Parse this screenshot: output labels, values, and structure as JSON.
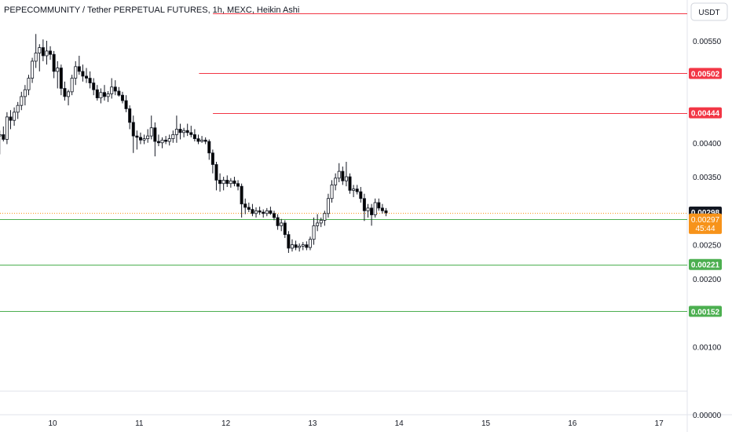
{
  "header": {
    "title": "PEPECOMMUNITY / Tether PERPETUAL FUTURES, 1h, MEXC, Heikin Ashi",
    "currency": "USDT"
  },
  "chart_data": {
    "type": "candlestick",
    "ylim": [
      0,
      0.0061
    ],
    "y_ticks": [
      "0.00550",
      "0.00400",
      "0.00350",
      "0.00250",
      "0.00200",
      "0.00100",
      "0.00000"
    ],
    "y_tick_values": [
      0.0055,
      0.004,
      0.0035,
      0.0025,
      0.002,
      0.001,
      0.0
    ],
    "x_ticks": [
      "10",
      "11",
      "12",
      "13",
      "14",
      "15",
      "16",
      "17"
    ],
    "x_tick_days": [
      10,
      11,
      12,
      13,
      14,
      15,
      16,
      17
    ],
    "x_start_day": 9.39,
    "hours_per_day": 24,
    "candles": [
      [
        0.0041,
        0.00418,
        0.00383,
        0.00412
      ],
      [
        0.00412,
        0.00424,
        0.00402,
        0.00405
      ],
      [
        0.00405,
        0.00445,
        0.00398,
        0.00438
      ],
      [
        0.00438,
        0.00448,
        0.0042,
        0.00433
      ],
      [
        0.00433,
        0.00452,
        0.00425,
        0.00445
      ],
      [
        0.00445,
        0.0046,
        0.00435,
        0.00455
      ],
      [
        0.00455,
        0.00475,
        0.00448,
        0.00468
      ],
      [
        0.00468,
        0.00485,
        0.00455,
        0.00478
      ],
      [
        0.00478,
        0.005,
        0.0047,
        0.00495
      ],
      [
        0.00495,
        0.00525,
        0.00488,
        0.0052
      ],
      [
        0.0052,
        0.0056,
        0.0051,
        0.00532
      ],
      [
        0.00532,
        0.00545,
        0.00505,
        0.0054
      ],
      [
        0.0054,
        0.00552,
        0.0052,
        0.00528
      ],
      [
        0.00528,
        0.0055,
        0.00515,
        0.00535
      ],
      [
        0.00535,
        0.00542,
        0.00522,
        0.0053
      ],
      [
        0.0053,
        0.00535,
        0.00495,
        0.00505
      ],
      [
        0.00505,
        0.0052,
        0.0048,
        0.0051
      ],
      [
        0.0051,
        0.00515,
        0.0047,
        0.0048
      ],
      [
        0.0048,
        0.0049,
        0.00462,
        0.00468
      ],
      [
        0.00468,
        0.00478,
        0.00455,
        0.00475
      ],
      [
        0.00475,
        0.005,
        0.0047,
        0.00495
      ],
      [
        0.00495,
        0.0052,
        0.00485,
        0.00512
      ],
      [
        0.00512,
        0.00528,
        0.005,
        0.00505
      ],
      [
        0.00505,
        0.00515,
        0.0049,
        0.00498
      ],
      [
        0.00498,
        0.0051,
        0.00488,
        0.00495
      ],
      [
        0.00495,
        0.00505,
        0.0048,
        0.00488
      ],
      [
        0.00488,
        0.00495,
        0.0047,
        0.00478
      ],
      [
        0.00478,
        0.00485,
        0.00462,
        0.00466
      ],
      [
        0.00466,
        0.0048,
        0.00458,
        0.00474
      ],
      [
        0.00474,
        0.00485,
        0.00462,
        0.00468
      ],
      [
        0.00468,
        0.00476,
        0.0046,
        0.00472
      ],
      [
        0.00472,
        0.00495,
        0.00465,
        0.00482
      ],
      [
        0.00482,
        0.00492,
        0.0047,
        0.00476
      ],
      [
        0.00476,
        0.00482,
        0.00468,
        0.0047
      ],
      [
        0.0047,
        0.00475,
        0.00458,
        0.00462
      ],
      [
        0.00462,
        0.0047,
        0.00445,
        0.0045
      ],
      [
        0.0045,
        0.00455,
        0.0042,
        0.0043
      ],
      [
        0.0043,
        0.0044,
        0.00385,
        0.0041
      ],
      [
        0.0041,
        0.00418,
        0.0039,
        0.00408
      ],
      [
        0.00408,
        0.00415,
        0.00398,
        0.00404
      ],
      [
        0.00404,
        0.00412,
        0.00398,
        0.00406
      ],
      [
        0.00406,
        0.0042,
        0.004,
        0.0041
      ],
      [
        0.0041,
        0.0044,
        0.00405,
        0.00422
      ],
      [
        0.00422,
        0.0043,
        0.0038,
        0.00402
      ],
      [
        0.00402,
        0.00412,
        0.00395,
        0.004
      ],
      [
        0.004,
        0.00408,
        0.00392,
        0.00404
      ],
      [
        0.00404,
        0.0041,
        0.00398,
        0.00402
      ],
      [
        0.00402,
        0.00412,
        0.00396,
        0.00406
      ],
      [
        0.00406,
        0.00418,
        0.004,
        0.00412
      ],
      [
        0.00412,
        0.0044,
        0.004,
        0.0042
      ],
      [
        0.0042,
        0.00428,
        0.00405,
        0.00415
      ],
      [
        0.00415,
        0.00422,
        0.00408,
        0.00418
      ],
      [
        0.00418,
        0.00428,
        0.0041,
        0.00415
      ],
      [
        0.00415,
        0.00425,
        0.00408,
        0.00412
      ],
      [
        0.00412,
        0.0042,
        0.00402,
        0.00406
      ],
      [
        0.00406,
        0.00412,
        0.00398,
        0.00402
      ],
      [
        0.00402,
        0.0041,
        0.004,
        0.00404
      ],
      [
        0.00404,
        0.00408,
        0.00398,
        0.00402
      ],
      [
        0.00402,
        0.00405,
        0.00375,
        0.00385
      ],
      [
        0.00385,
        0.0039,
        0.00355,
        0.00368
      ],
      [
        0.00368,
        0.00372,
        0.0033,
        0.00345
      ],
      [
        0.00345,
        0.00355,
        0.00328,
        0.0034
      ],
      [
        0.0034,
        0.0035,
        0.0033,
        0.00345
      ],
      [
        0.00345,
        0.00352,
        0.00335,
        0.0034
      ],
      [
        0.0034,
        0.00348,
        0.00334,
        0.00344
      ],
      [
        0.00344,
        0.0035,
        0.00336,
        0.0034
      ],
      [
        0.0034,
        0.00345,
        0.0033,
        0.00336
      ],
      [
        0.00336,
        0.0034,
        0.0029,
        0.0031
      ],
      [
        0.0031,
        0.00318,
        0.00295,
        0.00305
      ],
      [
        0.00305,
        0.00312,
        0.00298,
        0.00302
      ],
      [
        0.00302,
        0.0031,
        0.00292,
        0.00296
      ],
      [
        0.00296,
        0.00305,
        0.0029,
        0.003
      ],
      [
        0.003,
        0.00306,
        0.00294,
        0.00298
      ],
      [
        0.00298,
        0.00302,
        0.0029,
        0.00296
      ],
      [
        0.00296,
        0.00304,
        0.00292,
        0.003
      ],
      [
        0.003,
        0.00306,
        0.00294,
        0.00296
      ],
      [
        0.00296,
        0.003,
        0.00286,
        0.0029
      ],
      [
        0.0029,
        0.00295,
        0.00272,
        0.00278
      ],
      [
        0.00278,
        0.00288,
        0.0027,
        0.00282
      ],
      [
        0.00282,
        0.00286,
        0.0026,
        0.00265
      ],
      [
        0.00265,
        0.0027,
        0.00238,
        0.00245
      ],
      [
        0.00245,
        0.00258,
        0.0024,
        0.0025
      ],
      [
        0.0025,
        0.00256,
        0.00242,
        0.00246
      ],
      [
        0.00246,
        0.00252,
        0.0024,
        0.00248
      ],
      [
        0.00248,
        0.00254,
        0.00242,
        0.0025
      ],
      [
        0.0025,
        0.00255,
        0.00242,
        0.00246
      ],
      [
        0.00246,
        0.00262,
        0.00242,
        0.00258
      ],
      [
        0.00258,
        0.0029,
        0.0025,
        0.00278
      ],
      [
        0.00278,
        0.00295,
        0.0027,
        0.00282
      ],
      [
        0.00282,
        0.0029,
        0.00276,
        0.00286
      ],
      [
        0.00286,
        0.003,
        0.00278,
        0.00296
      ],
      [
        0.00296,
        0.00325,
        0.0029,
        0.00318
      ],
      [
        0.00318,
        0.00345,
        0.00312,
        0.00338
      ],
      [
        0.00338,
        0.00355,
        0.0033,
        0.00348
      ],
      [
        0.00348,
        0.0037,
        0.00342,
        0.00358
      ],
      [
        0.00358,
        0.00365,
        0.00338,
        0.00344
      ],
      [
        0.00344,
        0.00372,
        0.00336,
        0.0035
      ],
      [
        0.0035,
        0.00355,
        0.00325,
        0.0033
      ],
      [
        0.0033,
        0.00338,
        0.0032,
        0.00332
      ],
      [
        0.00332,
        0.00338,
        0.00324,
        0.00328
      ],
      [
        0.00328,
        0.00335,
        0.00312,
        0.00318
      ],
      [
        0.00318,
        0.00325,
        0.00285,
        0.003
      ],
      [
        0.003,
        0.0031,
        0.0029,
        0.00304
      ],
      [
        0.00304,
        0.0031,
        0.00278,
        0.00294
      ],
      [
        0.00294,
        0.00318,
        0.0029,
        0.00312
      ],
      [
        0.00312,
        0.00318,
        0.003,
        0.00304
      ],
      [
        0.00304,
        0.0031,
        0.00296,
        0.003
      ],
      [
        0.003,
        0.00304,
        0.00292,
        0.00297
      ]
    ],
    "levels": [
      {
        "value": 0.0059,
        "color": "#f23645",
        "label": "",
        "from_day": 11.85
      },
      {
        "value": 0.00502,
        "color": "#f23645",
        "label": "0.00502",
        "from_day": 11.69
      },
      {
        "value": 0.00444,
        "color": "#f23645",
        "label": "0.00444",
        "from_day": 11.85
      },
      {
        "value": 0.00288,
        "color": "#4caf50",
        "label": "0.00288",
        "from_day": 9.39
      },
      {
        "value": 0.00221,
        "color": "#4caf50",
        "label": "0.00221",
        "from_day": 9.39
      },
      {
        "value": 0.00152,
        "color": "#4caf50",
        "label": "0.00152",
        "from_day": 9.39
      }
    ],
    "last_price": {
      "value": 0.00298,
      "label": "0.00298",
      "color": "#131722"
    },
    "current_price": {
      "value": 0.00297,
      "label": "0.00297",
      "countdown": "45:44",
      "color": "#f7931a"
    },
    "colors": {
      "up": "#ffffff",
      "down": "#000000",
      "wick": "#131722"
    }
  }
}
